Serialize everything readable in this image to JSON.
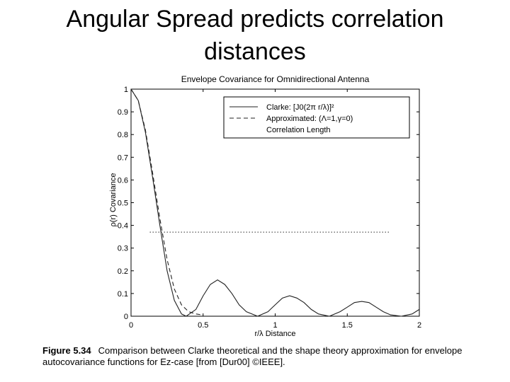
{
  "slide": {
    "title_line1": "Angular Spread predicts correlation",
    "title_line2": "distances"
  },
  "caption": {
    "label": "Figure 5.34",
    "text": "Comparison between Clarke theoretical and the shape theory approximation for envelope autocovariance functions for Ez-case [from [Dur00] ©IEEE]."
  },
  "chart_data": {
    "type": "line",
    "title": "Envelope Covariance for Omnidirectional Antenna",
    "xlabel": "r/λ  Distance",
    "ylabel": "ρ(r)  Covariance",
    "xlim": [
      0,
      2
    ],
    "ylim": [
      0,
      1
    ],
    "x_ticks": [
      "0",
      "0.5",
      "1",
      "1.5",
      "2"
    ],
    "y_ticks": [
      "0",
      "0.1",
      "0.2",
      "0.3",
      "0.4",
      "0.5",
      "0.6",
      "0.7",
      "0.8",
      "0.9",
      "1"
    ],
    "grid": false,
    "legend_position": "top-right",
    "series": [
      {
        "name": "Clarke: [J0(2π r/λ)]²",
        "style": "solid",
        "x": [
          0,
          0.05,
          0.1,
          0.15,
          0.2,
          0.25,
          0.3,
          0.35,
          0.383,
          0.45,
          0.5,
          0.55,
          0.6,
          0.65,
          0.7,
          0.75,
          0.8,
          0.878,
          0.95,
          1.0,
          1.05,
          1.1,
          1.15,
          1.2,
          1.25,
          1.3,
          1.376,
          1.45,
          1.5,
          1.55,
          1.6,
          1.65,
          1.7,
          1.75,
          1.8,
          1.875,
          1.95,
          2.0
        ],
        "y": [
          1,
          0.95,
          0.81,
          0.61,
          0.4,
          0.2,
          0.07,
          0.01,
          0,
          0.03,
          0.09,
          0.14,
          0.16,
          0.14,
          0.1,
          0.05,
          0.02,
          0,
          0.02,
          0.05,
          0.08,
          0.09,
          0.08,
          0.06,
          0.03,
          0.01,
          0,
          0.02,
          0.04,
          0.06,
          0.065,
          0.06,
          0.04,
          0.02,
          0.006,
          0,
          0.01,
          0.03
        ]
      },
      {
        "name": "Approximated: (Λ=1,γ=0)",
        "style": "dashed",
        "x": [
          0,
          0.05,
          0.1,
          0.15,
          0.2,
          0.25,
          0.3,
          0.35,
          0.4,
          0.45,
          0.5
        ],
        "y": [
          1,
          0.95,
          0.82,
          0.63,
          0.43,
          0.25,
          0.12,
          0.05,
          0.02,
          0.01,
          0.005
        ]
      },
      {
        "name": "Correlation Length",
        "style": "dotted",
        "x": [
          0.13,
          1.8
        ],
        "y": [
          0.37,
          0.37
        ]
      }
    ]
  }
}
